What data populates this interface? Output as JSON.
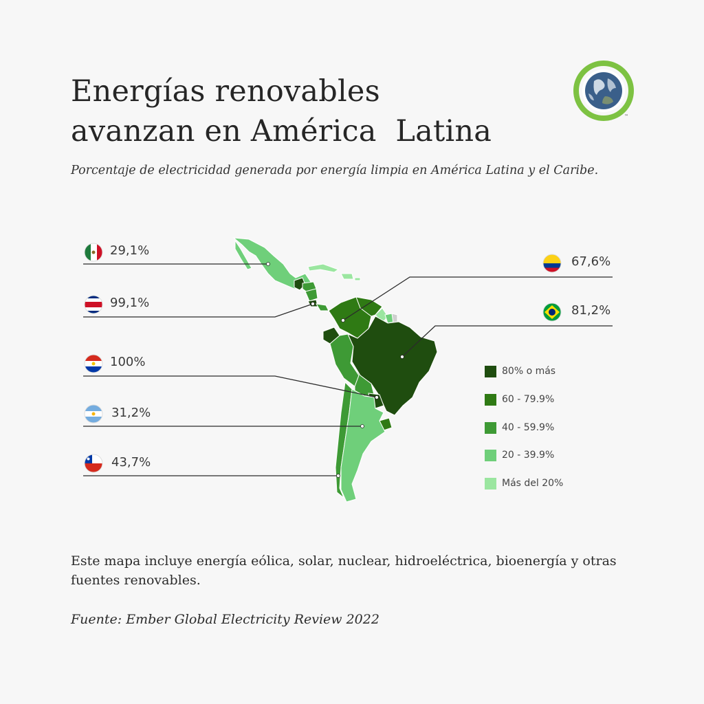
{
  "header": {
    "title_line1": "Energías renovables",
    "title_line2": "avanzan en América  Latina",
    "subtitle": "Porcentaje de electricidad generada por energía limpia en América Latina y el Caribe."
  },
  "logo": {
    "icon": "earth-globe-icon",
    "ring_color": "#7dc242",
    "mark": "™"
  },
  "countries": [
    {
      "name": "mexico",
      "value": "29,1%",
      "flag": "mexico-flag-icon"
    },
    {
      "name": "costa-rica",
      "value": "99,1%",
      "flag": "costa-rica-flag-icon"
    },
    {
      "name": "paraguay",
      "value": "100%",
      "flag": "paraguay-flag-icon"
    },
    {
      "name": "argentina",
      "value": "31,2%",
      "flag": "argentina-flag-icon"
    },
    {
      "name": "chile",
      "value": "43,7%",
      "flag": "chile-flag-icon"
    },
    {
      "name": "colombia",
      "value": "67,6%",
      "flag": "colombia-flag-icon"
    },
    {
      "name": "brazil",
      "value": "81,2%",
      "flag": "brazil-flag-icon"
    }
  ],
  "legend": [
    {
      "label": "80% o más",
      "color": "#1f4d0f"
    },
    {
      "label": "60 - 79.9%",
      "color": "#2f7a14"
    },
    {
      "label": "40 - 59.9%",
      "color": "#3e9a35"
    },
    {
      "label": "20 - 39.9%",
      "color": "#6fcf7a"
    },
    {
      "label": "Más del 20%",
      "color": "#9be6a0"
    }
  ],
  "footer": {
    "note": "Este mapa incluye energía eólica, solar, nuclear, hidroeléctrica, bioenergía y otras fuentes renovables.",
    "source": "Fuente: Ember Global Electricity Review 2022"
  }
}
